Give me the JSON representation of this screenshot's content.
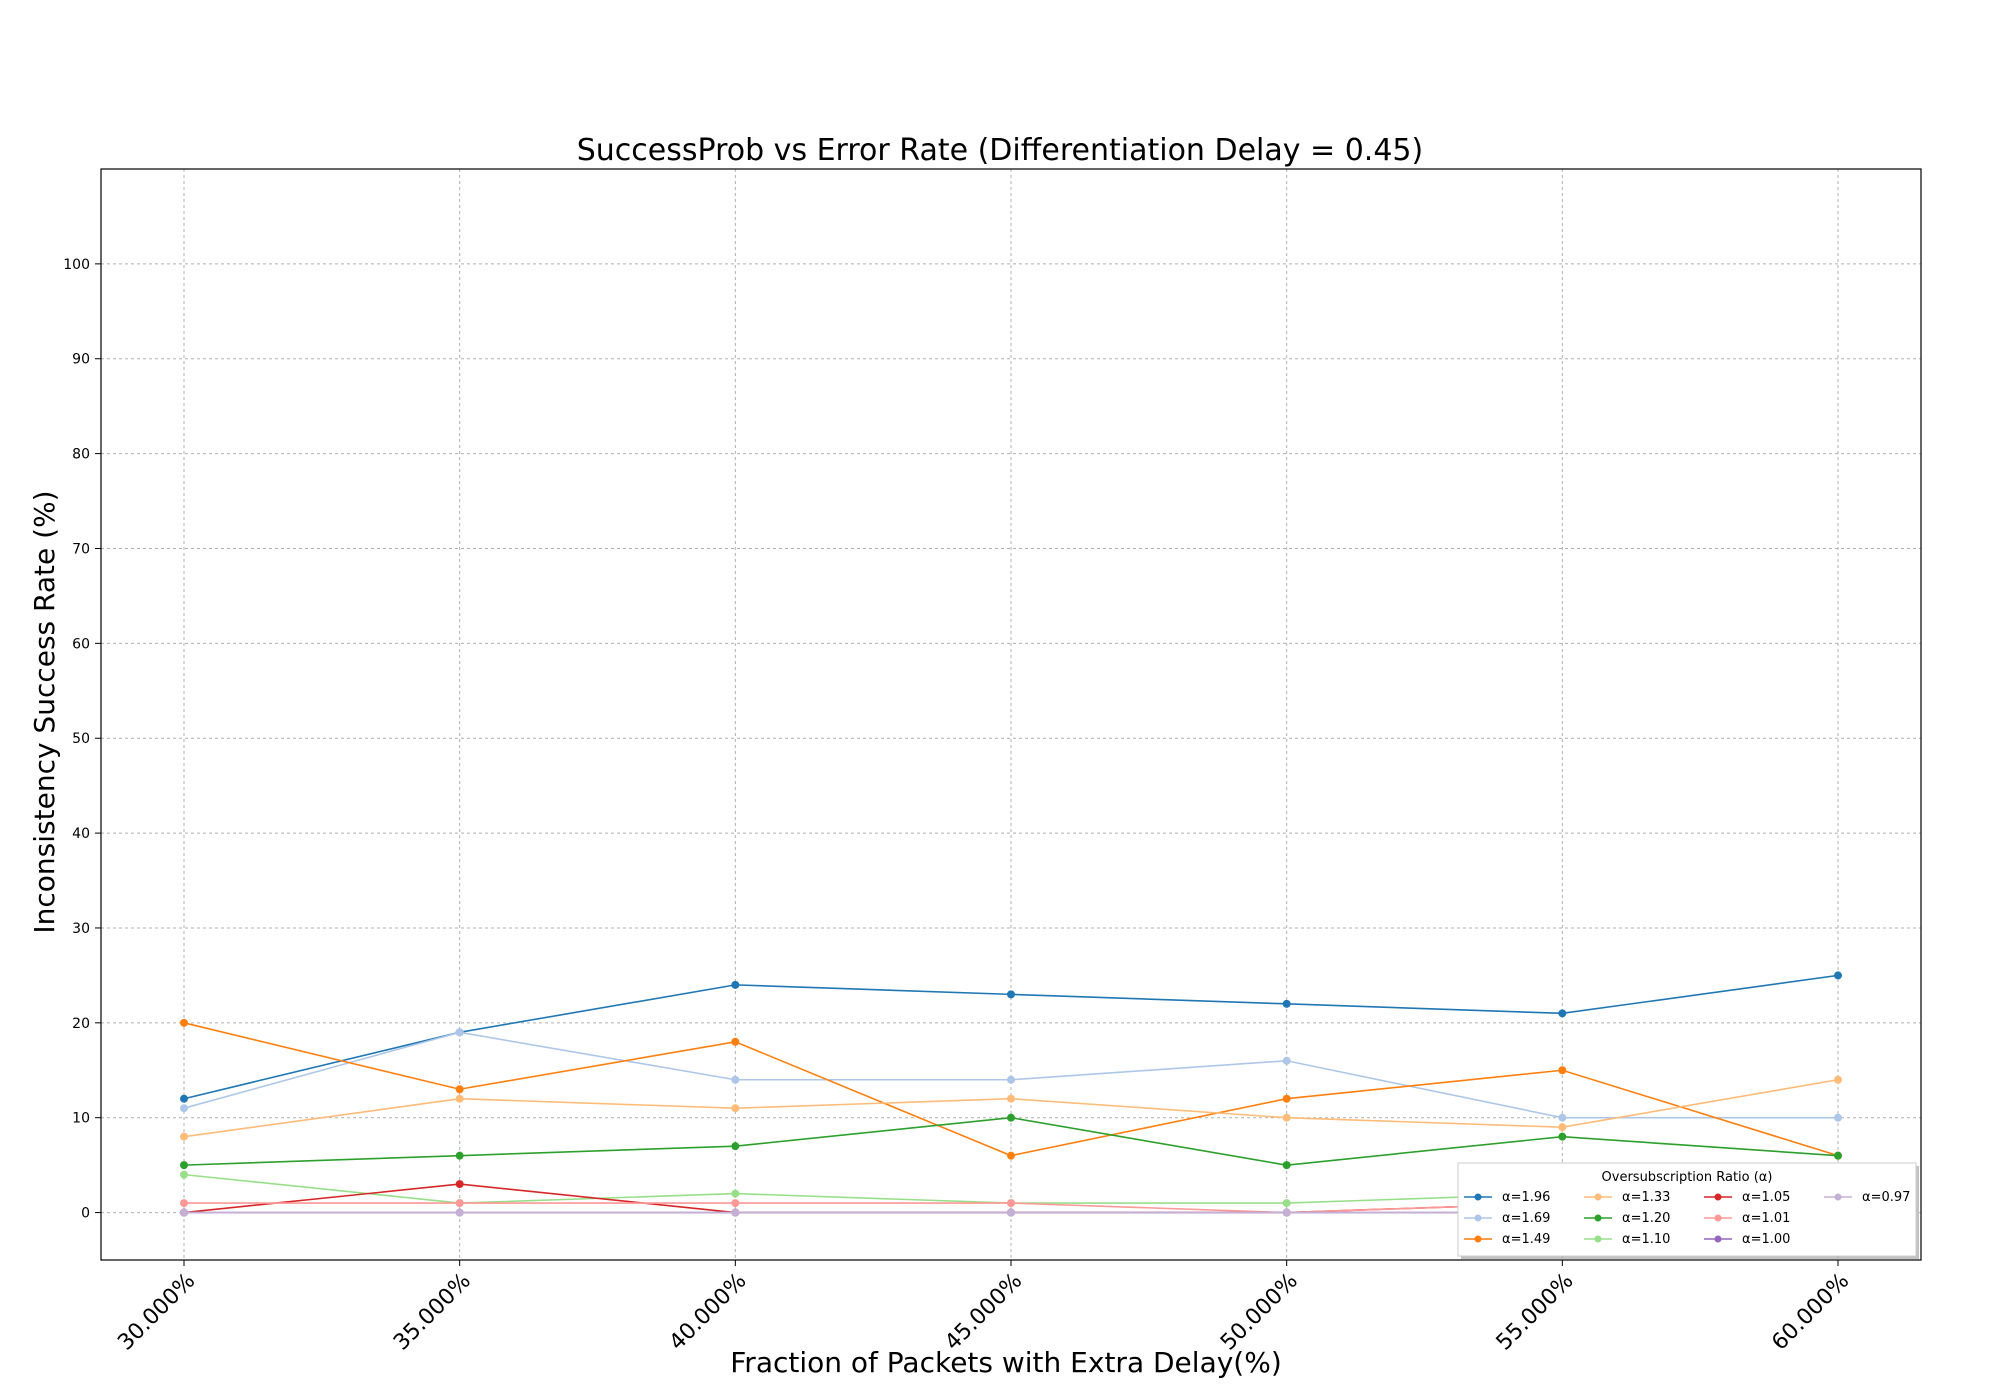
{
  "chart_data": {
    "type": "line",
    "title": "SuccessProb vs Error Rate (Differentiation Delay = 0.45)",
    "xlabel": "Fraction of Packets with Extra Delay(%)",
    "ylabel": "Inconsistency Success Rate (%)",
    "x": [
      "30.000%",
      "35.000%",
      "40.000%",
      "45.000%",
      "50.000%",
      "55.000%",
      "60.000%"
    ],
    "yticks": [
      0,
      10,
      20,
      30,
      40,
      50,
      60,
      70,
      80,
      90,
      100
    ],
    "ylim": [
      -5,
      110
    ],
    "grid": true,
    "legend": {
      "title": "Oversubscription Ratio (α)",
      "placement": "lower right",
      "columns": 4
    },
    "series": [
      {
        "name": "α=1.96",
        "color": "#1f77b4",
        "values": [
          12,
          19,
          24,
          23,
          22,
          21,
          25
        ]
      },
      {
        "name": "α=1.69",
        "color": "#aec7e8",
        "values": [
          11,
          19,
          14,
          14,
          16,
          10,
          10
        ]
      },
      {
        "name": "α=1.49",
        "color": "#ff7f0e",
        "values": [
          20,
          13,
          18,
          6,
          12,
          15,
          6
        ]
      },
      {
        "name": "α=1.33",
        "color": "#ffbb78",
        "values": [
          8,
          12,
          11,
          12,
          10,
          9,
          14
        ]
      },
      {
        "name": "α=1.20",
        "color": "#2ca02c",
        "values": [
          5,
          6,
          7,
          10,
          5,
          8,
          6
        ]
      },
      {
        "name": "α=1.10",
        "color": "#98df8a",
        "values": [
          4,
          1,
          2,
          1,
          1,
          2,
          1
        ]
      },
      {
        "name": "α=1.05",
        "color": "#d62728",
        "values": [
          0,
          3,
          0,
          0,
          0,
          1,
          0
        ]
      },
      {
        "name": "α=1.01",
        "color": "#ff9896",
        "values": [
          1,
          1,
          1,
          1,
          0,
          1,
          1
        ]
      },
      {
        "name": "α=1.00",
        "color": "#9467bd",
        "values": [
          0,
          0,
          0,
          0,
          0,
          0,
          0
        ]
      },
      {
        "name": "α=0.97",
        "color": "#c5b0d5",
        "values": [
          0,
          0,
          0,
          0,
          0,
          0,
          0
        ]
      }
    ]
  }
}
